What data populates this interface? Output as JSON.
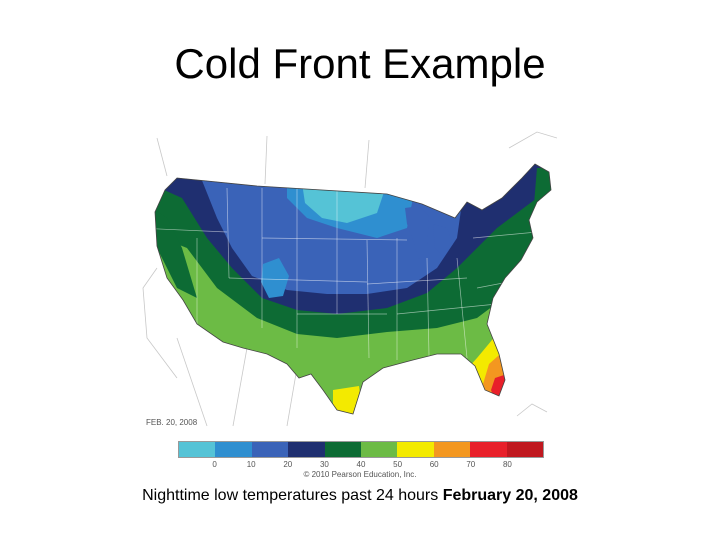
{
  "title": "Cold Front Example",
  "map": {
    "date_stamp": "FEB. 20, 2008",
    "credit": "© 2010 Pearson Education, Inc."
  },
  "legend": {
    "colors": [
      "#55c3d6",
      "#2f8fd0",
      "#3a63b8",
      "#1f2f70",
      "#0d6b34",
      "#6cbb45",
      "#f3ea00",
      "#f39720",
      "#e8202a",
      "#c0181f"
    ],
    "ticks": [
      "0",
      "10",
      "20",
      "30",
      "40",
      "50",
      "60",
      "70",
      "80"
    ]
  },
  "caption": {
    "text": "Nighttime low temperatures past 24 hours ",
    "bold": "February 20, 2008"
  }
}
